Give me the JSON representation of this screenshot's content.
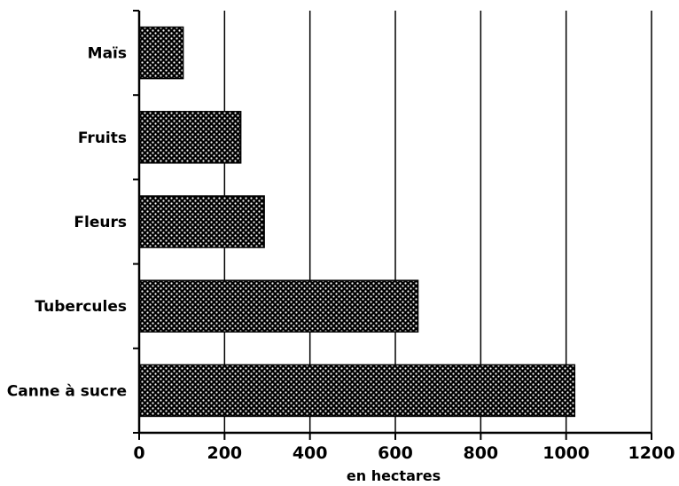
{
  "chart_data": {
    "type": "bar",
    "orientation": "horizontal",
    "categories": [
      "Maïs",
      "Fruits",
      "Fleurs",
      "Tubercules",
      "Canne à sucre"
    ],
    "values": [
      103,
      238,
      293,
      653,
      1020
    ],
    "xlabel": "en hectares",
    "xlim": [
      0,
      1200
    ],
    "xticks": [
      "0",
      "200",
      "400",
      "600",
      "800",
      "1000",
      "1200"
    ],
    "grid": "vertical",
    "bar_pattern": "dotted-crosshatch",
    "colors": {
      "bar": "#000000",
      "dots": "#ffffff",
      "axis": "#000000",
      "background": "#ffffff"
    }
  }
}
